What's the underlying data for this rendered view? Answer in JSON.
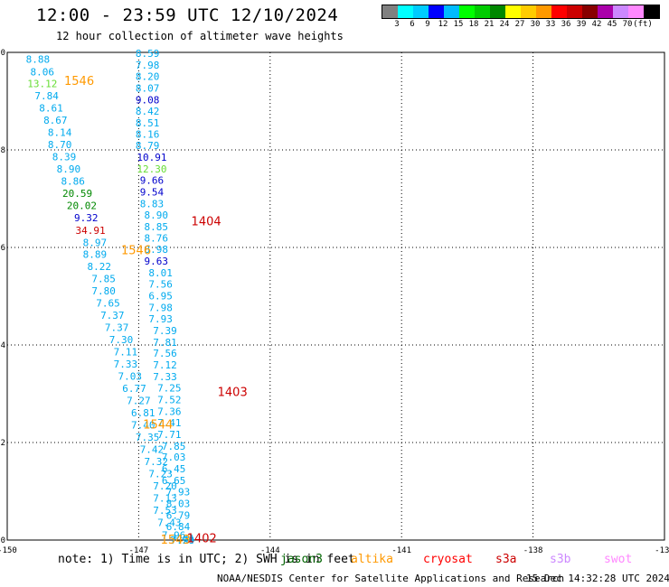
{
  "header": {
    "title": "12:00 - 23:59 UTC 12/10/2024",
    "subtitle": "12 hour collection of altimeter wave heights"
  },
  "colorbar": {
    "colors": [
      "#808080",
      "#00ffff",
      "#00ccff",
      "#0000ff",
      "#00bbff",
      "#00ff00",
      "#00cc00",
      "#008800",
      "#ffff00",
      "#ffcc00",
      "#ff9900",
      "#ff0000",
      "#cc0000",
      "#880000",
      "#aa00aa",
      "#cc88ff",
      "#ff88ff",
      "#000000"
    ],
    "labels": [
      "3",
      "6",
      "9",
      "12",
      "15",
      "18",
      "21",
      "24",
      "27",
      "30",
      "33",
      "36",
      "39",
      "42",
      "45",
      "70",
      "(ft)"
    ]
  },
  "footer": {
    "note": "note: 1) Time is in UTC; 2) SWH is in feet",
    "credit": "NOAA/NESDIS Center for Satellite Applications and Research",
    "stamp": "15 Dec 14:32:28 UTC 2024",
    "legend": [
      {
        "name": "jason3",
        "color": "#006400"
      },
      {
        "name": "altika",
        "color": "#ff9900"
      },
      {
        "name": "cryosat",
        "color": "#ff0000"
      },
      {
        "name": "s3a",
        "color": "#cc0000"
      },
      {
        "name": "s3b",
        "color": "#cc88ff"
      },
      {
        "name": "swot",
        "color": "#ff88ff"
      }
    ]
  },
  "chart_data": {
    "type": "scatter",
    "xlim": [
      -150,
      -135
    ],
    "ylim": [
      0,
      10
    ],
    "x_ticks": [
      "-150",
      "-147",
      "-144",
      "-141",
      "-138",
      "-135"
    ],
    "y_ticks": [
      "0",
      "2",
      "4",
      "6",
      "8",
      "10"
    ],
    "grid": true,
    "track_labels": [
      {
        "text": "1546",
        "x": -148.7,
        "y": 9.43,
        "color": "#ff9900"
      },
      {
        "text": "1404",
        "x": -145.8,
        "y": 6.55,
        "color": "#cc0000"
      },
      {
        "text": "1546",
        "x": -147.4,
        "y": 5.95,
        "color": "#ff9900"
      },
      {
        "text": "1403",
        "x": -145.2,
        "y": 3.05,
        "color": "#cc0000"
      },
      {
        "text": "1544",
        "x": -146.9,
        "y": 2.38,
        "color": "#ff9900"
      },
      {
        "text": "1543",
        "x": -146.5,
        "y": 0.02,
        "color": "#ff9900"
      },
      {
        "text": "1402",
        "x": -145.9,
        "y": 0.05,
        "color": "#cc0000"
      }
    ],
    "series": [
      {
        "name": "1546",
        "x": [
          -149.3,
          -149.2,
          -149.2,
          -149.1,
          -149.0,
          -148.9,
          -148.8,
          -148.8,
          -148.7,
          -148.6,
          -148.5,
          -148.4,
          -148.3,
          -148.2,
          -148.1,
          -148.0,
          -148.0,
          -147.9,
          -147.8,
          -147.8,
          -147.7,
          -147.6,
          -147.5,
          -147.4,
          -147.3,
          -147.3,
          -147.2,
          -147.1,
          -147.0,
          -146.9,
          -146.9,
          -146.8,
          -146.7,
          -146.6,
          -146.5,
          -146.4,
          -146.4
        ],
        "y": [
          9.86,
          9.6,
          9.36,
          9.11,
          8.86,
          8.61,
          8.36,
          8.11,
          7.86,
          7.61,
          7.36,
          7.11,
          6.86,
          6.61,
          6.35,
          6.1,
          5.86,
          5.61,
          5.36,
          5.11,
          4.86,
          4.61,
          4.36,
          4.11,
          3.86,
          3.61,
          3.36,
          3.11,
          2.86,
          2.61,
          2.36,
          2.11,
          1.86,
          1.61,
          1.36,
          1.11,
          0.86
        ],
        "labels": [
          "8.88",
          "8.06",
          "13.12",
          "7.84",
          "8.61",
          "8.67",
          "8.14",
          "8.70",
          "8.39",
          "8.90",
          "8.86",
          "20.59",
          "20.02",
          "9.32",
          "34.91",
          "8.97",
          "8.89",
          "8.22",
          "7.85",
          "7.80",
          "7.65",
          "7.37",
          "7.37",
          "7.30",
          "7.11",
          "7.33",
          "7.03",
          "6.77",
          "7.27",
          "6.81",
          "7.40",
          "7.35",
          "7.42",
          "7.32",
          "7.23",
          "7.20",
          "7.13"
        ],
        "colors": [
          "#00aaee",
          "#00aaee",
          "#66dd33",
          "#00aaee",
          "#00aaee",
          "#00aaee",
          "#00aaee",
          "#00aaee",
          "#00aaee",
          "#00aaee",
          "#00aaee",
          "#008800",
          "#008800",
          "#0000cc",
          "#cc0000",
          "#00aaee",
          "#00aaee",
          "#00aaee",
          "#00aaee",
          "#00aaee",
          "#00aaee",
          "#00aaee",
          "#00aaee",
          "#00aaee",
          "#00aaee",
          "#00aaee",
          "#00aaee",
          "#00aaee",
          "#00aaee",
          "#00aaee",
          "#00aaee",
          "#00aaee",
          "#00aaee",
          "#00aaee",
          "#00aaee",
          "#00aaee",
          "#00aaee"
        ]
      },
      {
        "name": "1544",
        "x": [
          -146.4,
          -146.3,
          -146.2
        ],
        "y": [
          0.61,
          0.36,
          0.1
        ],
        "labels": [
          "7.53",
          "7.43",
          "7.96"
        ],
        "colors": [
          "#00aaee",
          "#00aaee",
          "#00aaee"
        ]
      },
      {
        "name": "1404",
        "x": [
          -146.8,
          -146.8,
          -146.8,
          -146.8,
          -146.8,
          -146.8,
          -146.8,
          -146.8,
          -146.8,
          -146.7,
          -146.7,
          -146.7,
          -146.7,
          -146.7,
          -146.6,
          -146.6,
          -146.6,
          -146.6,
          -146.6,
          -146.5,
          -146.5,
          -146.5,
          -146.5,
          -146.5,
          -146.4,
          -146.4,
          -146.4,
          -146.4,
          -146.4,
          -146.3,
          -146.3,
          -146.3,
          -146.3,
          -146.3,
          -146.2,
          -146.2,
          -146.2,
          -146.2,
          -146.1,
          -146.1,
          -146.1,
          -146.1,
          -146.0,
          -146.0,
          -146.0,
          -146.0
        ],
        "y": [
          9.98,
          9.74,
          9.51,
          9.27,
          9.03,
          8.8,
          8.56,
          8.32,
          8.09,
          7.85,
          7.61,
          7.38,
          7.14,
          6.9,
          6.67,
          6.43,
          6.19,
          5.96,
          5.72,
          5.48,
          5.25,
          5.01,
          4.77,
          4.54,
          4.3,
          4.06,
          3.83,
          3.59,
          3.35,
          3.12,
          2.88,
          2.64,
          2.41,
          2.17,
          1.93,
          1.7,
          1.46,
          1.22,
          0.99,
          0.75,
          0.51,
          0.28,
          0.04,
          0.0,
          0.0,
          0.0
        ],
        "labels": [
          "8.59",
          "7.98",
          "8.20",
          "8.07",
          "9.08",
          "8.42",
          "8.51",
          "8.16",
          "8.79",
          "10.91",
          "12.30",
          "9.66",
          "9.54",
          "8.83",
          "8.90",
          "8.85",
          "8.76",
          "8.98",
          "9.63",
          "8.01",
          "7.56",
          "6.95",
          "7.98",
          "7.93",
          "7.39",
          "7.81",
          "7.56",
          "7.12",
          "7.33",
          "7.25",
          "7.52",
          "7.36",
          "7.41",
          "7.71",
          "7.85",
          "7.03",
          "6.45",
          "6.65",
          "7.93",
          "8.03",
          "6.79",
          "6.84",
          "7.01",
          "7.24",
          "7.39",
          ""
        ],
        "colors": [
          "#00aaee",
          "#00aaee",
          "#00aaee",
          "#00aaee",
          "#0000cc",
          "#00aaee",
          "#00aaee",
          "#00aaee",
          "#00aaee",
          "#0000cc",
          "#66dd33",
          "#0000cc",
          "#0000cc",
          "#00aaee",
          "#00aaee",
          "#00aaee",
          "#00aaee",
          "#00aaee",
          "#0000cc",
          "#00aaee",
          "#00aaee",
          "#00aaee",
          "#00aaee",
          "#00aaee",
          "#00aaee",
          "#00aaee",
          "#00aaee",
          "#00aaee",
          "#00aaee",
          "#00aaee",
          "#00aaee",
          "#00aaee",
          "#00aaee",
          "#00aaee",
          "#00aaee",
          "#00aaee",
          "#00aaee",
          "#00aaee",
          "#00aaee",
          "#00aaee",
          "#00aaee",
          "#00aaee",
          "#00aaee",
          "#00aaee",
          "#00aaee",
          "#00aaee"
        ]
      }
    ]
  }
}
